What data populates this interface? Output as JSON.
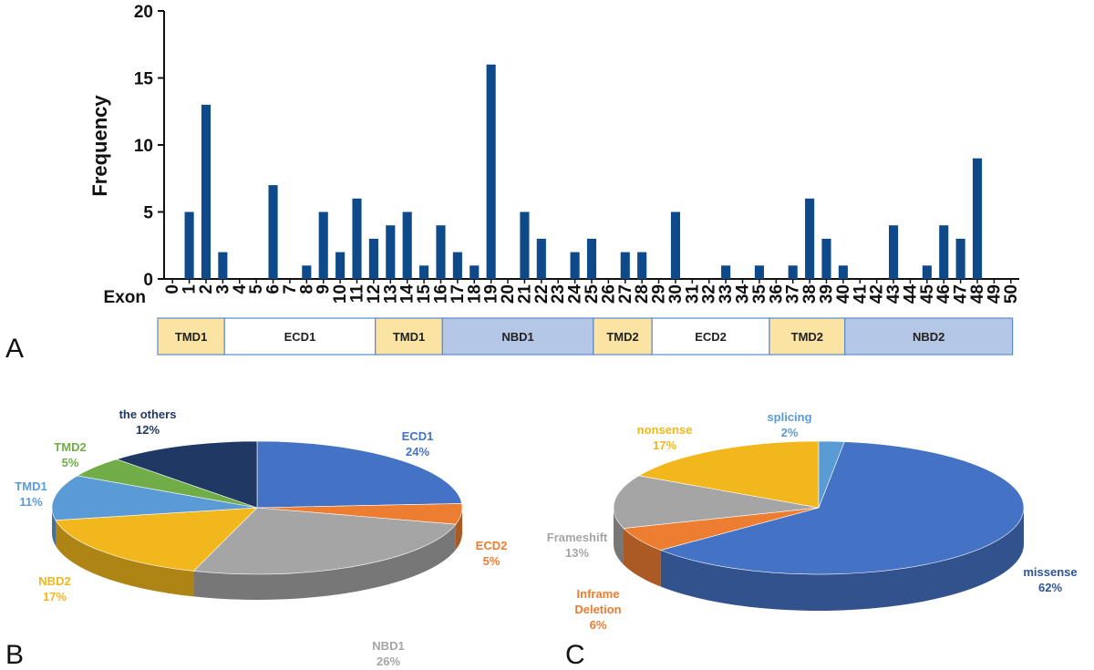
{
  "panels": {
    "A": "A",
    "B": "B",
    "C": "C"
  },
  "chart_data": [
    {
      "type": "bar",
      "panel": "A",
      "ylabel": "Frequency",
      "xlabel": "Exon",
      "ylim": [
        0,
        20
      ],
      "yticks": [
        0,
        5,
        10,
        15,
        20
      ],
      "color": "#0e4a8a",
      "categories": [
        "0",
        "1",
        "2",
        "3",
        "4",
        "5",
        "6",
        "7",
        "8",
        "9",
        "10",
        "11",
        "12",
        "13",
        "14",
        "15",
        "16",
        "17",
        "18",
        "19",
        "20",
        "21",
        "22",
        "23",
        "24",
        "25",
        "26",
        "27",
        "28",
        "29",
        "30",
        "31",
        "32",
        "33",
        "34",
        "35",
        "36",
        "37",
        "38",
        "39",
        "40",
        "41",
        "42",
        "43",
        "44",
        "45",
        "46",
        "47",
        "48",
        "49",
        "50"
      ],
      "values": [
        0,
        5,
        13,
        2,
        0,
        0,
        7,
        0,
        1,
        5,
        2,
        6,
        3,
        4,
        5,
        1,
        4,
        2,
        1,
        16,
        0,
        5,
        3,
        0,
        2,
        3,
        0,
        2,
        2,
        0,
        5,
        0,
        0,
        1,
        0,
        1,
        0,
        1,
        6,
        3,
        1,
        0,
        0,
        4,
        0,
        1,
        4,
        3,
        9,
        0,
        0
      ],
      "domains": [
        {
          "label": "TMD1",
          "from": 0,
          "to": 4,
          "color": "#fbe3a4"
        },
        {
          "label": "ECD1",
          "from": 4,
          "to": 13,
          "color": "#ffffff"
        },
        {
          "label": "TMD1",
          "from": 13,
          "to": 17,
          "color": "#fbe3a4"
        },
        {
          "label": "NBD1",
          "from": 17,
          "to": 26,
          "color": "#b4c7e7"
        },
        {
          "label": "TMD2",
          "from": 26,
          "to": 29.5,
          "color": "#fbe3a4"
        },
        {
          "label": "ECD2",
          "from": 29.5,
          "to": 36.5,
          "color": "#ffffff"
        },
        {
          "label": "TMD2",
          "from": 36.5,
          "to": 41,
          "color": "#fbe3a4"
        },
        {
          "label": "NBD2",
          "from": 41,
          "to": 51,
          "color": "#b4c7e7"
        }
      ]
    },
    {
      "type": "pie",
      "panel": "B",
      "slices": [
        {
          "name": "ECD1",
          "pct": "24%",
          "value": 24,
          "color": "#4472c4",
          "label_color": "#4472c4"
        },
        {
          "name": "ECD2",
          "pct": "5%",
          "value": 5,
          "color": "#ed7d31",
          "label_color": "#ed7d31"
        },
        {
          "name": "NBD1",
          "pct": "26%",
          "value": 26,
          "color": "#a5a5a5",
          "label_color": "#a5a5a5"
        },
        {
          "name": "NBD2",
          "pct": "17%",
          "value": 17,
          "color": "#f2b71c",
          "label_color": "#f2b71c"
        },
        {
          "name": "TMD1",
          "pct": "11%",
          "value": 11,
          "color": "#5b9bd5",
          "label_color": "#5b9bd5"
        },
        {
          "name": "TMD2",
          "pct": "5%",
          "value": 5,
          "color": "#70ad47",
          "label_color": "#70ad47"
        },
        {
          "name": "the others",
          "pct": "12%",
          "value": 12,
          "color": "#203864",
          "label_color": "#203864"
        }
      ]
    },
    {
      "type": "pie",
      "panel": "C",
      "slices": [
        {
          "name": "missense",
          "pct": "62%",
          "value": 62,
          "color": "#4472c4",
          "label_color": "#2f5597"
        },
        {
          "name": "Inframe\nDeletion",
          "pct": "6%",
          "value": 6,
          "color": "#ed7d31",
          "label_color": "#ed7d31"
        },
        {
          "name": "Frameshift",
          "pct": "13%",
          "value": 13,
          "color": "#a5a5a5",
          "label_color": "#a5a5a5"
        },
        {
          "name": "nonsense",
          "pct": "17%",
          "value": 17,
          "color": "#f2b71c",
          "label_color": "#f2b71c"
        },
        {
          "name": "splicing",
          "pct": "2%",
          "value": 2,
          "color": "#5b9bd5",
          "label_color": "#5b9bd5"
        }
      ]
    }
  ]
}
